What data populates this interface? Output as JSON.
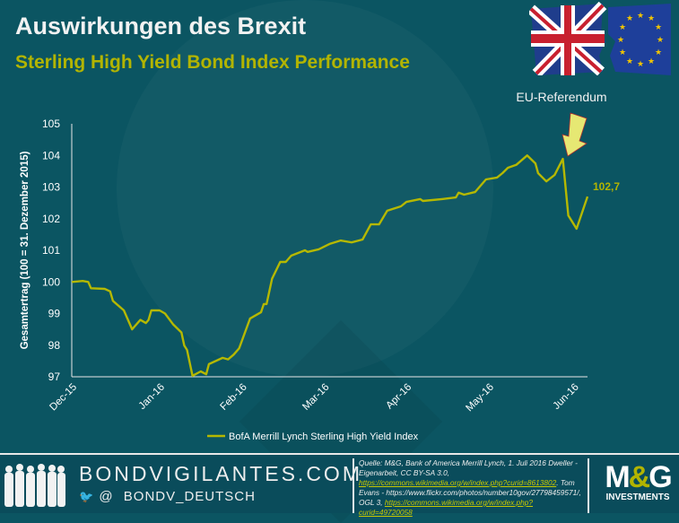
{
  "header": {
    "title": "Auswirkungen des Brexit",
    "subtitle": "Sterling High Yield Bond Index Performance"
  },
  "colors": {
    "background": "#0b5562",
    "accent": "#b2b400",
    "line": "#b5b800"
  },
  "chart_data": {
    "type": "line",
    "title": "Sterling High Yield Bond Index Performance",
    "xlabel": "",
    "ylabel": "Gesamtertrag (100 = 31. Dezember 2015)",
    "x_unit": "days since start of Dec-15 axis tick",
    "xlim": [
      0,
      188
    ],
    "ylim": [
      97,
      105
    ],
    "yticks": [
      97,
      98,
      99,
      100,
      101,
      102,
      103,
      104,
      105
    ],
    "xticks": [
      {
        "x": 0,
        "label": "Dec-15"
      },
      {
        "x": 32,
        "label": "Jan-16"
      },
      {
        "x": 62,
        "label": "Feb-16"
      },
      {
        "x": 92,
        "label": "Mar-16"
      },
      {
        "x": 122,
        "label": "Apr-16"
      },
      {
        "x": 152,
        "label": "May-16"
      },
      {
        "x": 183,
        "label": "Jun-16"
      }
    ],
    "grid": false,
    "legend": "bottom",
    "series": [
      {
        "name": "BofA Merrill Lynch Sterling High Yield Index",
        "x": [
          0,
          4,
          6,
          7,
          12,
          14,
          15,
          19,
          22,
          23,
          25,
          27,
          28,
          29,
          32,
          34,
          37,
          40,
          41,
          42,
          44,
          47,
          49,
          50,
          55,
          57,
          59,
          61,
          65,
          69,
          70,
          71,
          73,
          76,
          78,
          80,
          85,
          86,
          90,
          94,
          98,
          102,
          106,
          109,
          112,
          115,
          120,
          122,
          127,
          128,
          135,
          140,
          141,
          143,
          147,
          151,
          155,
          157,
          159,
          162,
          166,
          169,
          170,
          173,
          176,
          179,
          181,
          184,
          188
        ],
        "values": [
          100.0,
          100.03,
          100.0,
          99.8,
          99.78,
          99.7,
          99.4,
          99.1,
          98.5,
          98.6,
          98.8,
          98.7,
          98.8,
          99.1,
          99.1,
          99.0,
          98.65,
          98.4,
          97.99,
          97.85,
          97.03,
          97.17,
          97.08,
          97.4,
          97.6,
          97.55,
          97.7,
          97.9,
          98.84,
          99.04,
          99.3,
          99.3,
          100.1,
          100.63,
          100.63,
          100.83,
          101.0,
          100.95,
          101.03,
          101.2,
          101.31,
          101.25,
          101.34,
          101.82,
          101.82,
          102.25,
          102.39,
          102.53,
          102.62,
          102.56,
          102.62,
          102.67,
          102.82,
          102.76,
          102.84,
          103.24,
          103.3,
          103.44,
          103.61,
          103.7,
          104.0,
          103.75,
          103.44,
          103.18,
          103.38,
          103.89,
          102.1,
          101.68,
          102.7
        ]
      }
    ],
    "annotations": [
      {
        "text": "EU-Referendum",
        "x": 179,
        "y": 103.89
      },
      {
        "text": "102,7",
        "x": 188,
        "y": 102.7
      }
    ]
  },
  "footer": {
    "site": "BONDVIGILANTES.COM",
    "twitter_at": "@",
    "twitter_handle": "BONDV_DEUTSCH",
    "source_text1": "Quelle: M&G, Bank of America Merrill Lynch, 1. Juli 2016 Dweller - Eigenarbeit, CC BY-SA 3.0,",
    "source_link1": "https://commons.wikimedia.org/w/index.php?curid=8613802",
    "source_text2": ". Tom Evans - https://www.flickr.com/photos/number10gov/27798459571/, OGL 3,",
    "source_link2": "https://commons.wikimedia.org/w/index.php?curid=49720058",
    "logo_main_1": "M",
    "logo_amp": "&",
    "logo_main_2": "G",
    "logo_sub": "INVESTMENTS"
  }
}
